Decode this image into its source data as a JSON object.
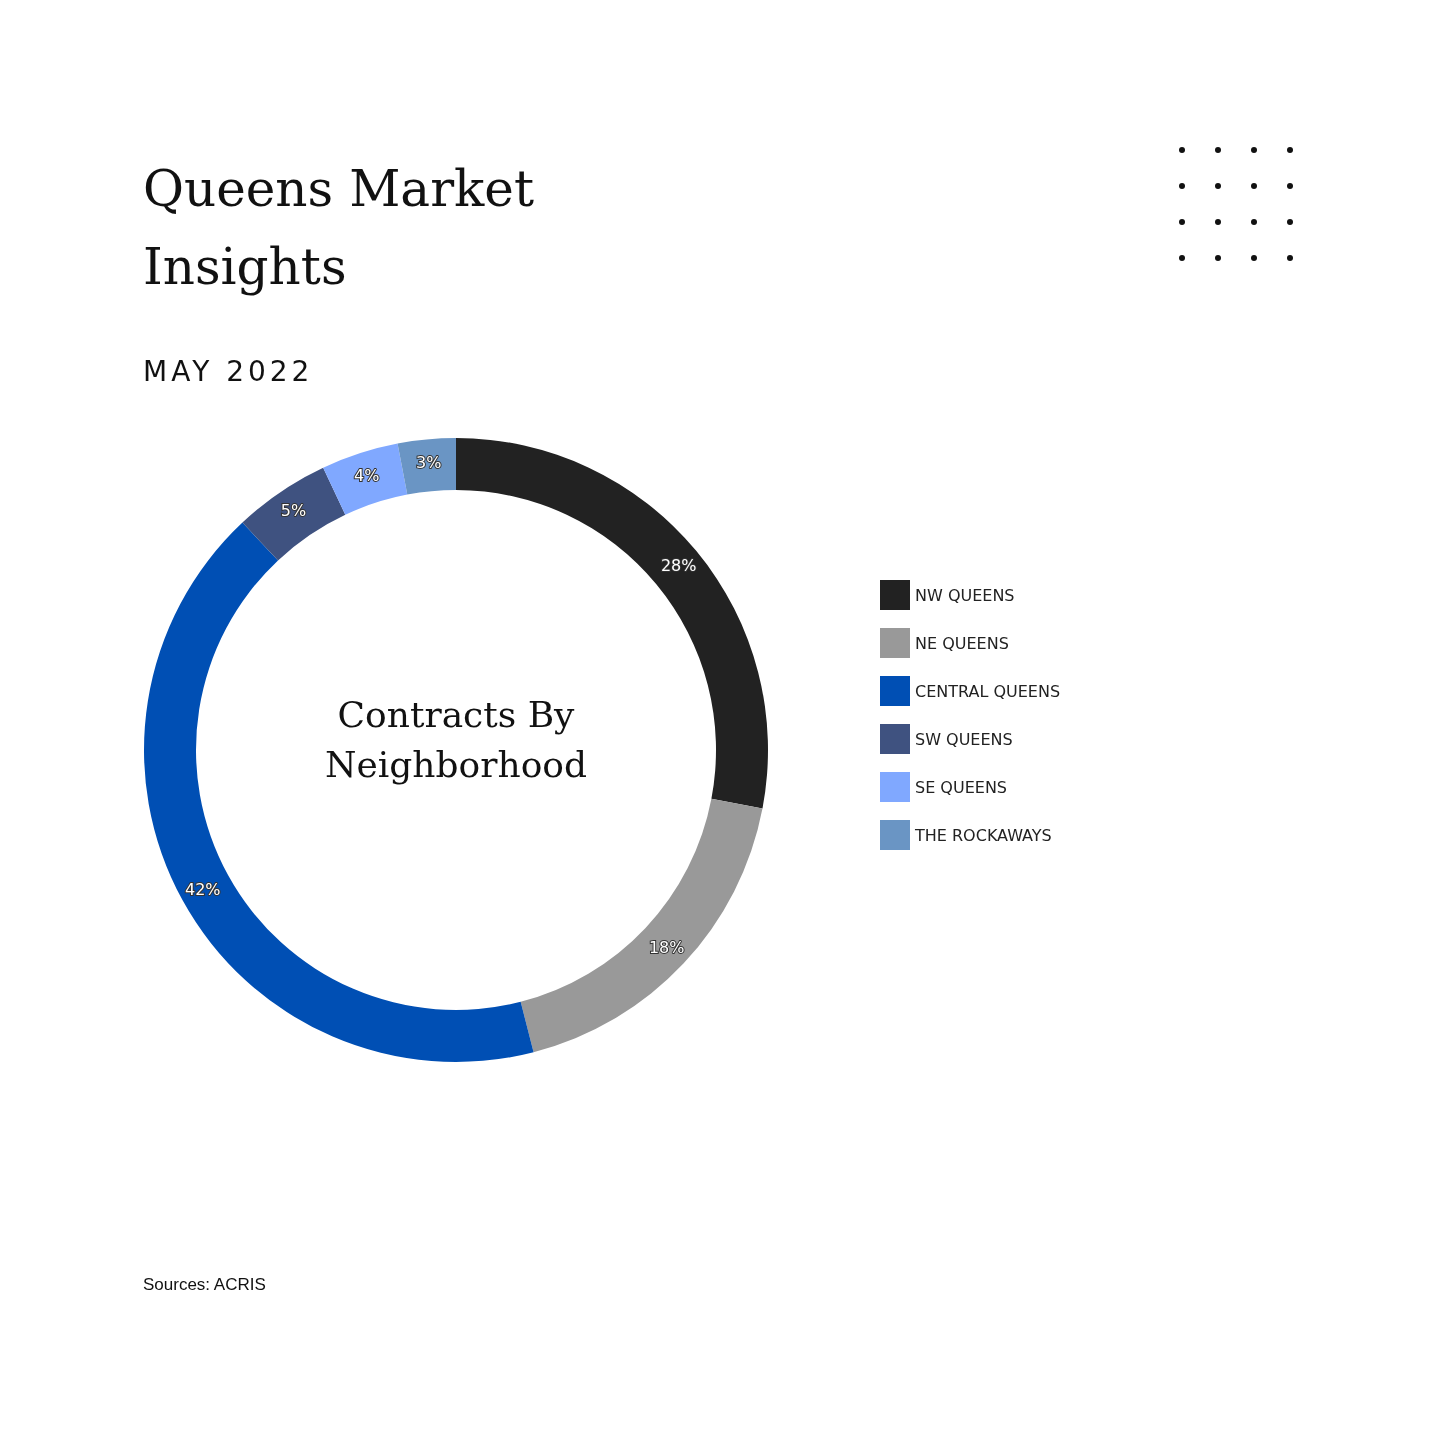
{
  "chart_data": {
    "type": "donut",
    "title": "Queens Market Insights",
    "subtitle": "MAY 2022",
    "categories": [
      "NW QUEENS",
      "NE QUEENS",
      "CENTRAL QUEENS",
      "SW QUEENS",
      "SE QUEENS",
      "THE ROCKAWAYS"
    ],
    "values": [
      28,
      18,
      42,
      5,
      4,
      3
    ],
    "value_labels": [
      "28%",
      "18%",
      "42%",
      "5%",
      "4%",
      "3%"
    ],
    "colors": [
      "#222222",
      "#999999",
      "#004fb4",
      "#3f5280",
      "#80a8ff",
      "#6a95c4"
    ],
    "legend": "right",
    "annotations": [
      "Contracts By Neighborhood",
      "Sources: ACRIS"
    ]
  }
}
